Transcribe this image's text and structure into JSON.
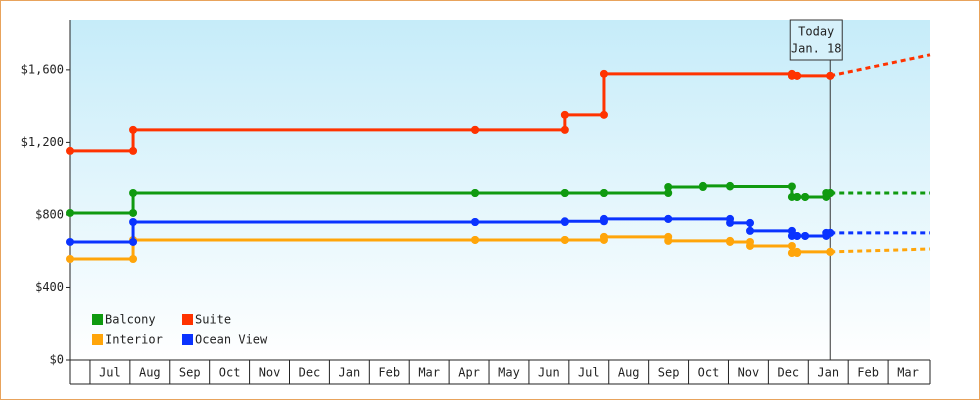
{
  "chart_data": {
    "type": "step-line",
    "categories": [
      "Jul",
      "Aug",
      "Sep",
      "Oct",
      "Nov",
      "Dec",
      "Jan",
      "Feb",
      "Mar",
      "Apr",
      "May",
      "Jun",
      "Jul",
      "Aug",
      "Sep",
      "Oct",
      "Nov",
      "Dec",
      "Jan",
      "Feb",
      "Mar"
    ],
    "xlim": [
      -0.5,
      21.05
    ],
    "ylim": [
      0,
      1875
    ],
    "yticks": [
      {
        "value": 0,
        "label": "$0"
      },
      {
        "value": 400,
        "label": "$400"
      },
      {
        "value": 800,
        "label": "$800"
      },
      {
        "value": 1200,
        "label": "$1,200"
      },
      {
        "value": 1600,
        "label": "$1,600"
      }
    ],
    "annotation": {
      "lines": [
        "Today",
        "Jan. 18"
      ],
      "x": 18.55
    },
    "legend": "bottom-left",
    "series": [
      {
        "name": "Balcony",
        "color": "#109a10",
        "x": [
          -0.5,
          1.08,
          9.65,
          11.9,
          12.88,
          14.49,
          15.36,
          16.04,
          17.59,
          17.72,
          17.92,
          18.45,
          18.55
        ],
        "values": [
          811,
          921,
          921,
          921,
          921,
          954,
          960,
          957,
          899,
          899,
          899,
          921,
          921
        ],
        "projected": 921
      },
      {
        "name": "Suite",
        "color": "#ff3300",
        "x": [
          -0.5,
          1.08,
          9.65,
          11.9,
          12.88,
          17.59,
          17.72,
          18.55
        ],
        "values": [
          1153,
          1269,
          1269,
          1352,
          1578,
          1567,
          1567,
          1567
        ],
        "projected": 1683
      },
      {
        "name": "Interior",
        "color": "#ffa50a",
        "x": [
          -0.5,
          1.08,
          9.65,
          11.9,
          12.88,
          14.49,
          16.04,
          16.54,
          17.59,
          17.72,
          18.55
        ],
        "values": [
          557,
          662,
          662,
          662,
          679,
          657,
          651,
          629,
          590,
          596,
          596
        ],
        "projected": 612
      },
      {
        "name": "Ocean View",
        "color": "#0a33ff",
        "x": [
          -0.5,
          1.08,
          9.65,
          11.9,
          12.88,
          14.49,
          16.04,
          16.54,
          17.59,
          17.72,
          17.92,
          18.45,
          18.55
        ],
        "values": [
          651,
          761,
          761,
          765,
          778,
          778,
          756,
          712,
          684,
          684,
          684,
          701,
          701
        ],
        "projected": 701
      }
    ]
  }
}
